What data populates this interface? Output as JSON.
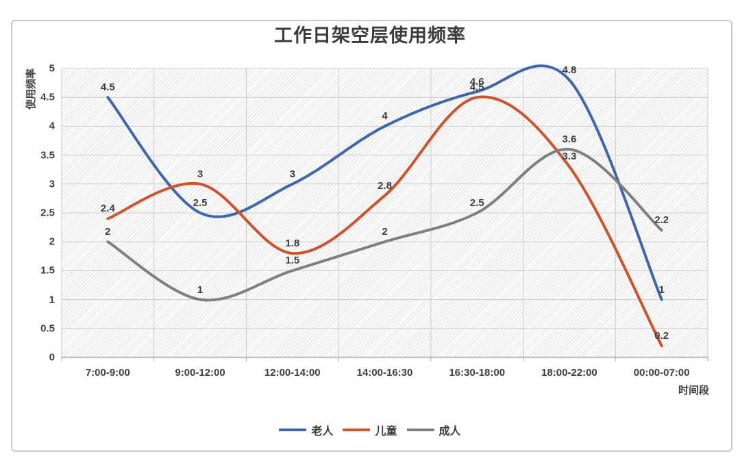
{
  "window": {
    "background": "#ffffff",
    "card_border_color": "#c9c9c9",
    "text_color": "#3d3d3d"
  },
  "chart_data": {
    "type": "line",
    "title": "工作日架空层使用频率",
    "smooth": true,
    "grid": true,
    "pattern_fill_plot_area": true,
    "data_labels": true,
    "legend_position": "bottom",
    "x_axis": {
      "title": "时间段",
      "categories": [
        "7:00-9:00",
        "9:00-12:00",
        "12:00-14:00",
        "14:00-16:30",
        "16:30-18:00",
        "18:00-22:00",
        "00:00-07:00"
      ]
    },
    "y_axis": {
      "title": "使用频率",
      "min": 0,
      "max": 5,
      "step": 0.5,
      "tick_labels": [
        "0",
        "0.5",
        "1",
        "1.5",
        "2",
        "2.5",
        "3",
        "3.5",
        "4",
        "4.5",
        "5"
      ]
    },
    "series": [
      {
        "name": "老人",
        "color": "#3e66b0",
        "values": [
          4.5,
          2.5,
          3,
          4,
          4.6,
          4.8,
          1
        ]
      },
      {
        "name": "儿童",
        "color": "#d0522a",
        "values": [
          2.4,
          3,
          1.8,
          2.8,
          4.5,
          3.3,
          0.2
        ]
      },
      {
        "name": "成人",
        "color": "#7f7f7f",
        "values": [
          2,
          1,
          1.5,
          2,
          2.5,
          3.6,
          2.2
        ]
      }
    ],
    "colors": {
      "gridline": "#c9c9c9",
      "axis_line": "#a6a6a6",
      "hatch_line": "#dedede",
      "label_text": "#3d3d3d"
    }
  }
}
